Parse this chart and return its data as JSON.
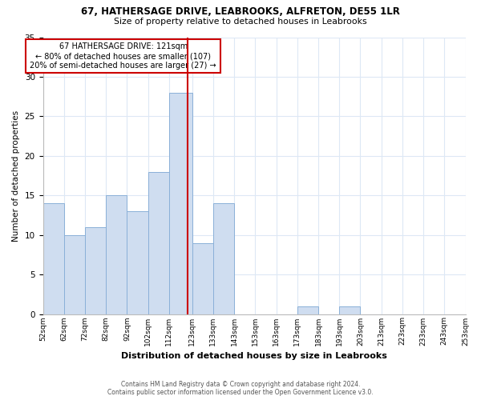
{
  "title1": "67, HATHERSAGE DRIVE, LEABROOKS, ALFRETON, DE55 1LR",
  "title2": "Size of property relative to detached houses in Leabrooks",
  "xlabel": "Distribution of detached houses by size in Leabrooks",
  "ylabel": "Number of detached properties",
  "bin_edges": [
    52,
    62,
    72,
    82,
    92,
    102,
    112,
    123,
    133,
    143,
    153,
    163,
    173,
    183,
    193,
    203,
    213,
    223,
    233,
    243,
    253
  ],
  "bin_labels": [
    "52sqm",
    "62sqm",
    "72sqm",
    "82sqm",
    "92sqm",
    "102sqm",
    "112sqm",
    "123sqm",
    "133sqm",
    "143sqm",
    "153sqm",
    "163sqm",
    "173sqm",
    "183sqm",
    "193sqm",
    "203sqm",
    "213sqm",
    "223sqm",
    "233sqm",
    "243sqm",
    "253sqm"
  ],
  "counts": [
    14,
    10,
    11,
    15,
    13,
    18,
    28,
    9,
    14,
    0,
    0,
    0,
    1,
    0,
    1,
    0,
    0,
    0,
    0,
    0
  ],
  "bar_color": "#cfddf0",
  "bar_edge_color": "#8ab0d8",
  "reference_line_x": 121,
  "reference_line_color": "#cc0000",
  "annotation_line1": "67 HATHERSAGE DRIVE: 121sqm",
  "annotation_line2": "← 80% of detached houses are smaller (107)",
  "annotation_line3": "20% of semi-detached houses are larger (27) →",
  "annotation_box_color": "#ffffff",
  "annotation_box_edge_color": "#cc0000",
  "ylim": [
    0,
    35
  ],
  "yticks": [
    0,
    5,
    10,
    15,
    20,
    25,
    30,
    35
  ],
  "footer1": "Contains HM Land Registry data © Crown copyright and database right 2024.",
  "footer2": "Contains public sector information licensed under the Open Government Licence v3.0.",
  "background_color": "#ffffff",
  "grid_color": "#dde8f5"
}
